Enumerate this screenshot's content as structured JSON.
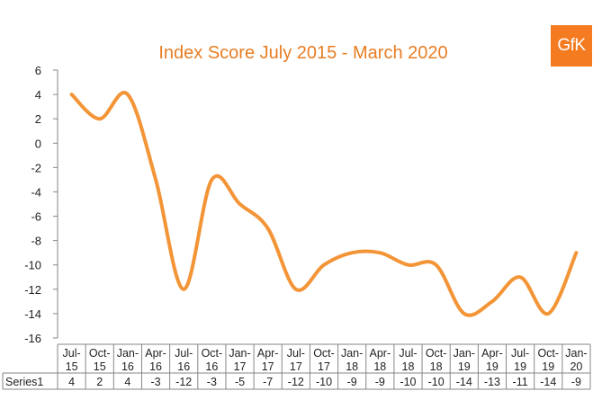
{
  "logo": {
    "text": "GfK",
    "color": "#f47b20"
  },
  "chart_data": {
    "type": "line",
    "title": "Index Score July 2015 - March 2020",
    "title_color": "#e87d23",
    "line_color": "#f39436",
    "categories": [
      [
        "Jul-",
        "15"
      ],
      [
        "Oct-",
        "15"
      ],
      [
        "Jan-",
        "16"
      ],
      [
        "Apr-",
        "16"
      ],
      [
        "Jul-",
        "16"
      ],
      [
        "Oct-",
        "16"
      ],
      [
        "Jan-",
        "17"
      ],
      [
        "Apr-",
        "17"
      ],
      [
        "Jul-",
        "17"
      ],
      [
        "Oct-",
        "17"
      ],
      [
        "Jan-",
        "18"
      ],
      [
        "Apr-",
        "18"
      ],
      [
        "Jul-",
        "18"
      ],
      [
        "Oct-",
        "18"
      ],
      [
        "Jan-",
        "19"
      ],
      [
        "Apr-",
        "19"
      ],
      [
        "Jul-",
        "19"
      ],
      [
        "Oct-",
        "19"
      ],
      [
        "Jan-",
        "20"
      ]
    ],
    "series": [
      {
        "name": "Series1",
        "values": [
          4,
          2,
          4,
          -3,
          -12,
          -3,
          -5,
          -7,
          -12,
          -10,
          -9,
          -9,
          -10,
          -10,
          -14,
          -13,
          -11,
          -14,
          -9
        ]
      }
    ],
    "ylim": [
      -16,
      6
    ],
    "yticks": [
      6,
      4,
      2,
      0,
      -2,
      -4,
      -6,
      -8,
      -10,
      -12,
      -14,
      -16
    ],
    "grid": false,
    "legend": "none",
    "data_table": true
  }
}
